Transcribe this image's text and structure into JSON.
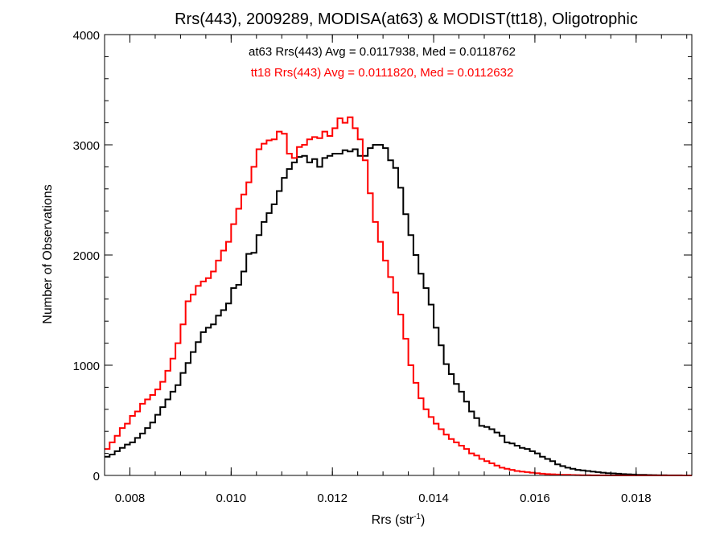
{
  "chart_data": {
    "type": "line",
    "step": true,
    "title": "Rrs(443), 2009289, MODISA(at63) & MODIST(tt18), Oligotrophic",
    "xlabel": "Rrs (str",
    "xlabel_sup": "-1",
    "xlabel_close": ")",
    "ylabel": "Number of Observations",
    "xlim": [
      0.0075,
      0.0191
    ],
    "ylim": [
      0,
      4000
    ],
    "xticks": [
      0.008,
      0.01,
      0.012,
      0.014,
      0.016,
      0.018
    ],
    "xtick_labels": [
      "0.008",
      "0.010",
      "0.012",
      "0.014",
      "0.016",
      "0.018"
    ],
    "yticks": [
      0,
      1000,
      2000,
      3000,
      4000
    ],
    "ytick_labels": [
      "0",
      "1000",
      "2000",
      "3000",
      "4000"
    ],
    "grid": false,
    "annotations": [
      {
        "text": "at63 Rrs(443) Avg = 0.0117938, Med = 0.0118762",
        "color": "#000000"
      },
      {
        "text": "tt18 Rrs(443) Avg = 0.0111820, Med = 0.0112632",
        "color": "#ff0000"
      }
    ],
    "series": [
      {
        "color": "#000000",
        "points": [
          [
            0.0075,
            170
          ],
          [
            0.0076,
            190
          ],
          [
            0.0077,
            220
          ],
          [
            0.0078,
            250
          ],
          [
            0.0079,
            280
          ],
          [
            0.008,
            300
          ],
          [
            0.0081,
            340
          ],
          [
            0.0082,
            380
          ],
          [
            0.0083,
            430
          ],
          [
            0.0084,
            480
          ],
          [
            0.0085,
            550
          ],
          [
            0.0086,
            620
          ],
          [
            0.0087,
            690
          ],
          [
            0.0088,
            760
          ],
          [
            0.0089,
            820
          ],
          [
            0.009,
            930
          ],
          [
            0.0091,
            1020
          ],
          [
            0.0092,
            1120
          ],
          [
            0.0093,
            1210
          ],
          [
            0.0094,
            1300
          ],
          [
            0.0095,
            1340
          ],
          [
            0.0096,
            1370
          ],
          [
            0.0097,
            1450
          ],
          [
            0.0098,
            1500
          ],
          [
            0.0099,
            1560
          ],
          [
            0.01,
            1700
          ],
          [
            0.0101,
            1730
          ],
          [
            0.0102,
            1850
          ],
          [
            0.0103,
            2010
          ],
          [
            0.0104,
            2020
          ],
          [
            0.0105,
            2180
          ],
          [
            0.0106,
            2300
          ],
          [
            0.0107,
            2380
          ],
          [
            0.0108,
            2460
          ],
          [
            0.0109,
            2580
          ],
          [
            0.011,
            2700
          ],
          [
            0.0111,
            2780
          ],
          [
            0.0112,
            2840
          ],
          [
            0.0113,
            2890
          ],
          [
            0.0114,
            2900
          ],
          [
            0.0115,
            2840
          ],
          [
            0.0116,
            2870
          ],
          [
            0.0117,
            2800
          ],
          [
            0.0118,
            2880
          ],
          [
            0.0119,
            2900
          ],
          [
            0.012,
            2920
          ],
          [
            0.0121,
            2920
          ],
          [
            0.0122,
            2950
          ],
          [
            0.0123,
            2940
          ],
          [
            0.0124,
            2960
          ],
          [
            0.0125,
            2900
          ],
          [
            0.0126,
            2900
          ],
          [
            0.0127,
            2970
          ],
          [
            0.0128,
            3000
          ],
          [
            0.0129,
            3000
          ],
          [
            0.013,
            2970
          ],
          [
            0.0131,
            2860
          ],
          [
            0.0132,
            2790
          ],
          [
            0.0133,
            2610
          ],
          [
            0.0134,
            2370
          ],
          [
            0.0135,
            2180
          ],
          [
            0.0136,
            2000
          ],
          [
            0.0137,
            1830
          ],
          [
            0.0138,
            1700
          ],
          [
            0.0139,
            1550
          ],
          [
            0.014,
            1340
          ],
          [
            0.0141,
            1180
          ],
          [
            0.0142,
            1010
          ],
          [
            0.0143,
            920
          ],
          [
            0.0144,
            830
          ],
          [
            0.0145,
            760
          ],
          [
            0.0146,
            670
          ],
          [
            0.0147,
            580
          ],
          [
            0.0148,
            520
          ],
          [
            0.0149,
            450
          ],
          [
            0.015,
            440
          ],
          [
            0.0151,
            420
          ],
          [
            0.0152,
            390
          ],
          [
            0.0153,
            360
          ],
          [
            0.0154,
            300
          ],
          [
            0.0155,
            290
          ],
          [
            0.0156,
            270
          ],
          [
            0.0157,
            250
          ],
          [
            0.0158,
            240
          ],
          [
            0.0159,
            220
          ],
          [
            0.016,
            200
          ],
          [
            0.0161,
            170
          ],
          [
            0.0162,
            150
          ],
          [
            0.0163,
            130
          ],
          [
            0.0164,
            100
          ],
          [
            0.0165,
            85
          ],
          [
            0.0166,
            70
          ],
          [
            0.0167,
            60
          ],
          [
            0.0168,
            50
          ],
          [
            0.0169,
            45
          ],
          [
            0.017,
            40
          ],
          [
            0.0171,
            35
          ],
          [
            0.0172,
            30
          ],
          [
            0.0173,
            25
          ],
          [
            0.0174,
            20
          ],
          [
            0.0175,
            18
          ],
          [
            0.0176,
            15
          ],
          [
            0.0177,
            12
          ],
          [
            0.0178,
            10
          ],
          [
            0.0179,
            8
          ],
          [
            0.018,
            6
          ],
          [
            0.0181,
            5
          ],
          [
            0.0182,
            4
          ],
          [
            0.0183,
            3
          ],
          [
            0.0184,
            2
          ],
          [
            0.0185,
            2
          ],
          [
            0.0186,
            1
          ],
          [
            0.0187,
            1
          ],
          [
            0.0188,
            1
          ],
          [
            0.0189,
            0
          ],
          [
            0.019,
            0
          ]
        ]
      },
      {
        "color": "#ff0000",
        "points": [
          [
            0.0075,
            240
          ],
          [
            0.0076,
            300
          ],
          [
            0.0077,
            360
          ],
          [
            0.0078,
            430
          ],
          [
            0.0079,
            470
          ],
          [
            0.008,
            540
          ],
          [
            0.0081,
            580
          ],
          [
            0.0082,
            650
          ],
          [
            0.0083,
            690
          ],
          [
            0.0084,
            730
          ],
          [
            0.0085,
            780
          ],
          [
            0.0086,
            850
          ],
          [
            0.0087,
            950
          ],
          [
            0.0088,
            1060
          ],
          [
            0.0089,
            1200
          ],
          [
            0.009,
            1370
          ],
          [
            0.0091,
            1580
          ],
          [
            0.0092,
            1640
          ],
          [
            0.0093,
            1720
          ],
          [
            0.0094,
            1760
          ],
          [
            0.0095,
            1790
          ],
          [
            0.0096,
            1850
          ],
          [
            0.0097,
            1950
          ],
          [
            0.0098,
            2040
          ],
          [
            0.0099,
            2120
          ],
          [
            0.01,
            2280
          ],
          [
            0.0101,
            2420
          ],
          [
            0.0102,
            2550
          ],
          [
            0.0103,
            2660
          ],
          [
            0.0104,
            2800
          ],
          [
            0.0105,
            2960
          ],
          [
            0.0106,
            3010
          ],
          [
            0.0107,
            3040
          ],
          [
            0.0108,
            3050
          ],
          [
            0.0109,
            3120
          ],
          [
            0.011,
            3100
          ],
          [
            0.0111,
            2920
          ],
          [
            0.0112,
            2880
          ],
          [
            0.0113,
            2980
          ],
          [
            0.0114,
            3000
          ],
          [
            0.0115,
            3050
          ],
          [
            0.0116,
            3070
          ],
          [
            0.0117,
            3060
          ],
          [
            0.0118,
            3120
          ],
          [
            0.0119,
            3080
          ],
          [
            0.012,
            3150
          ],
          [
            0.0121,
            3240
          ],
          [
            0.0122,
            3200
          ],
          [
            0.0123,
            3250
          ],
          [
            0.0124,
            3150
          ],
          [
            0.0125,
            3050
          ],
          [
            0.0126,
            2860
          ],
          [
            0.0127,
            2560
          ],
          [
            0.0128,
            2300
          ],
          [
            0.0129,
            2120
          ],
          [
            0.013,
            1950
          ],
          [
            0.0131,
            1800
          ],
          [
            0.0132,
            1660
          ],
          [
            0.0133,
            1460
          ],
          [
            0.0134,
            1240
          ],
          [
            0.0135,
            1000
          ],
          [
            0.0136,
            840
          ],
          [
            0.0137,
            700
          ],
          [
            0.0138,
            600
          ],
          [
            0.0139,
            530
          ],
          [
            0.014,
            470
          ],
          [
            0.0141,
            420
          ],
          [
            0.0142,
            370
          ],
          [
            0.0143,
            330
          ],
          [
            0.0144,
            300
          ],
          [
            0.0145,
            270
          ],
          [
            0.0146,
            240
          ],
          [
            0.0147,
            200
          ],
          [
            0.0148,
            180
          ],
          [
            0.0149,
            150
          ],
          [
            0.015,
            130
          ],
          [
            0.0151,
            110
          ],
          [
            0.0152,
            90
          ],
          [
            0.0153,
            70
          ],
          [
            0.0154,
            60
          ],
          [
            0.0155,
            50
          ],
          [
            0.0156,
            40
          ],
          [
            0.0157,
            35
          ],
          [
            0.0158,
            30
          ],
          [
            0.0159,
            25
          ],
          [
            0.016,
            20
          ],
          [
            0.0161,
            15
          ],
          [
            0.0162,
            12
          ],
          [
            0.0163,
            10
          ],
          [
            0.0164,
            8
          ],
          [
            0.0165,
            6
          ],
          [
            0.0166,
            5
          ],
          [
            0.0167,
            4
          ],
          [
            0.0168,
            3
          ],
          [
            0.0169,
            2
          ],
          [
            0.017,
            2
          ],
          [
            0.0171,
            1
          ],
          [
            0.0172,
            1
          ],
          [
            0.0173,
            1
          ],
          [
            0.0174,
            0
          ],
          [
            0.0175,
            0
          ],
          [
            0.0176,
            0
          ],
          [
            0.0177,
            0
          ],
          [
            0.0178,
            0
          ],
          [
            0.0179,
            0
          ],
          [
            0.018,
            0
          ],
          [
            0.0181,
            0
          ],
          [
            0.0182,
            0
          ],
          [
            0.0183,
            0
          ],
          [
            0.0184,
            0
          ],
          [
            0.0185,
            0
          ],
          [
            0.0186,
            0
          ],
          [
            0.0187,
            0
          ],
          [
            0.0188,
            0
          ],
          [
            0.0189,
            0
          ],
          [
            0.019,
            0
          ]
        ]
      }
    ]
  }
}
